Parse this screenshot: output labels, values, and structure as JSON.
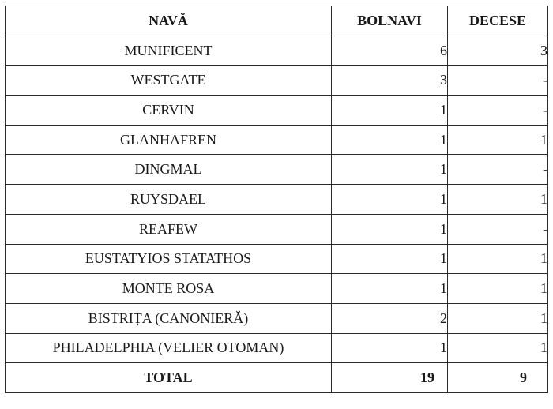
{
  "table": {
    "headers": {
      "ship": "NAVĂ",
      "sick": "BOLNAVI",
      "deaths": "DECESE"
    },
    "rows": [
      {
        "ship": "MUNIFICENT",
        "sick": "6",
        "deaths": "3"
      },
      {
        "ship": "WESTGATE",
        "sick": "3",
        "deaths": "-"
      },
      {
        "ship": "CERVIN",
        "sick": "1",
        "deaths": "-"
      },
      {
        "ship": "GLANHAFREN",
        "sick": "1",
        "deaths": "1"
      },
      {
        "ship": "DINGMAL",
        "sick": "1",
        "deaths": "-"
      },
      {
        "ship": "RUYSDAEL",
        "sick": "1",
        "deaths": "1"
      },
      {
        "ship": "REAFEW",
        "sick": "1",
        "deaths": "-"
      },
      {
        "ship": "EUSTATYIOS STATATHOS",
        "sick": "1",
        "deaths": "1"
      },
      {
        "ship": "MONTE ROSA",
        "sick": "1",
        "deaths": "1"
      },
      {
        "ship": "BISTRIȚA (CANONIERĂ)",
        "sick": "2",
        "deaths": "1"
      },
      {
        "ship": "PHILADELPHIA (VELIER OTOMAN)",
        "sick": "1",
        "deaths": "1"
      }
    ],
    "total": {
      "label": "TOTAL",
      "sick": "19",
      "deaths": "9"
    }
  }
}
